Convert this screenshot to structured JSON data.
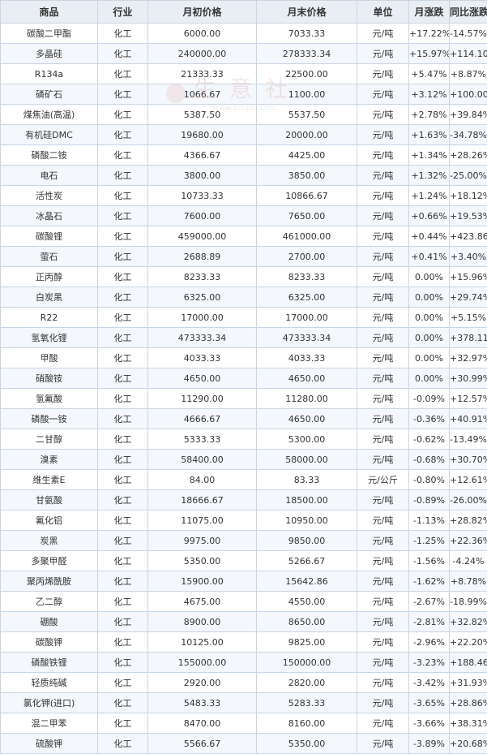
{
  "table": {
    "headers": [
      "商品",
      "行业",
      "月初价格",
      "月末价格",
      "单位",
      "月涨跌",
      "同比涨跌"
    ],
    "rows": [
      {
        "name": "碳酸二甲酯",
        "industry": "化工",
        "start": "6000.00",
        "end": "7033.33",
        "unit": "元/吨",
        "mchg": "+17.22%",
        "ychg": "-14.57%"
      },
      {
        "name": "多晶硅",
        "industry": "化工",
        "start": "240000.00",
        "end": "278333.34",
        "unit": "元/吨",
        "mchg": "+15.97%",
        "ychg": "+114.10%"
      },
      {
        "name": "R134a",
        "industry": "化工",
        "start": "21333.33",
        "end": "22500.00",
        "unit": "元/吨",
        "mchg": "+5.47%",
        "ychg": "+8.87%"
      },
      {
        "name": "磷矿石",
        "industry": "化工",
        "start": "1066.67",
        "end": "1100.00",
        "unit": "元/吨",
        "mchg": "+3.12%",
        "ychg": "+100.00%"
      },
      {
        "name": "煤焦油(高温)",
        "industry": "化工",
        "start": "5387.50",
        "end": "5537.50",
        "unit": "元/吨",
        "mchg": "+2.78%",
        "ychg": "+39.84%"
      },
      {
        "name": "有机硅DMC",
        "industry": "化工",
        "start": "19680.00",
        "end": "20000.00",
        "unit": "元/吨",
        "mchg": "+1.63%",
        "ychg": "-34.78%"
      },
      {
        "name": "磷酸二铵",
        "industry": "化工",
        "start": "4366.67",
        "end": "4425.00",
        "unit": "元/吨",
        "mchg": "+1.34%",
        "ychg": "+28.26%"
      },
      {
        "name": "电石",
        "industry": "化工",
        "start": "3800.00",
        "end": "3850.00",
        "unit": "元/吨",
        "mchg": "+1.32%",
        "ychg": "-25.00%"
      },
      {
        "name": "活性炭",
        "industry": "化工",
        "start": "10733.33",
        "end": "10866.67",
        "unit": "元/吨",
        "mchg": "+1.24%",
        "ychg": "+18.12%"
      },
      {
        "name": "冰晶石",
        "industry": "化工",
        "start": "7600.00",
        "end": "7650.00",
        "unit": "元/吨",
        "mchg": "+0.66%",
        "ychg": "+19.53%"
      },
      {
        "name": "碳酸锂",
        "industry": "化工",
        "start": "459000.00",
        "end": "461000.00",
        "unit": "元/吨",
        "mchg": "+0.44%",
        "ychg": "+423.86%"
      },
      {
        "name": "萤石",
        "industry": "化工",
        "start": "2688.89",
        "end": "2700.00",
        "unit": "元/吨",
        "mchg": "+0.41%",
        "ychg": "+3.40%"
      },
      {
        "name": "正丙醇",
        "industry": "化工",
        "start": "8233.33",
        "end": "8233.33",
        "unit": "元/吨",
        "mchg": "0.00%",
        "ychg": "+15.96%"
      },
      {
        "name": "白炭黑",
        "industry": "化工",
        "start": "6325.00",
        "end": "6325.00",
        "unit": "元/吨",
        "mchg": "0.00%",
        "ychg": "+29.74%"
      },
      {
        "name": "R22",
        "industry": "化工",
        "start": "17000.00",
        "end": "17000.00",
        "unit": "元/吨",
        "mchg": "0.00%",
        "ychg": "+5.15%"
      },
      {
        "name": "氢氧化锂",
        "industry": "化工",
        "start": "473333.34",
        "end": "473333.34",
        "unit": "元/吨",
        "mchg": "0.00%",
        "ychg": "+378.11%"
      },
      {
        "name": "甲酸",
        "industry": "化工",
        "start": "4033.33",
        "end": "4033.33",
        "unit": "元/吨",
        "mchg": "0.00%",
        "ychg": "+32.97%"
      },
      {
        "name": "硝酸铵",
        "industry": "化工",
        "start": "4650.00",
        "end": "4650.00",
        "unit": "元/吨",
        "mchg": "0.00%",
        "ychg": "+30.99%"
      },
      {
        "name": "氢氟酸",
        "industry": "化工",
        "start": "11290.00",
        "end": "11280.00",
        "unit": "元/吨",
        "mchg": "-0.09%",
        "ychg": "+12.57%"
      },
      {
        "name": "磷酸一铵",
        "industry": "化工",
        "start": "4666.67",
        "end": "4650.00",
        "unit": "元/吨",
        "mchg": "-0.36%",
        "ychg": "+40.91%"
      },
      {
        "name": "二甘醇",
        "industry": "化工",
        "start": "5333.33",
        "end": "5300.00",
        "unit": "元/吨",
        "mchg": "-0.62%",
        "ychg": "-13.49%"
      },
      {
        "name": "溴素",
        "industry": "化工",
        "start": "58400.00",
        "end": "58000.00",
        "unit": "元/吨",
        "mchg": "-0.68%",
        "ychg": "+30.70%"
      },
      {
        "name": "维生素E",
        "industry": "化工",
        "start": "84.00",
        "end": "83.33",
        "unit": "元/公斤",
        "mchg": "-0.80%",
        "ychg": "+12.61%"
      },
      {
        "name": "甘氨酸",
        "industry": "化工",
        "start": "18666.67",
        "end": "18500.00",
        "unit": "元/吨",
        "mchg": "-0.89%",
        "ychg": "-26.00%"
      },
      {
        "name": "氟化铝",
        "industry": "化工",
        "start": "11075.00",
        "end": "10950.00",
        "unit": "元/吨",
        "mchg": "-1.13%",
        "ychg": "+28.82%"
      },
      {
        "name": "炭黑",
        "industry": "化工",
        "start": "9975.00",
        "end": "9850.00",
        "unit": "元/吨",
        "mchg": "-1.25%",
        "ychg": "+22.36%"
      },
      {
        "name": "多聚甲醛",
        "industry": "化工",
        "start": "5350.00",
        "end": "5266.67",
        "unit": "元/吨",
        "mchg": "-1.56%",
        "ychg": "-4.24%"
      },
      {
        "name": "聚丙烯酰胺",
        "industry": "化工",
        "start": "15900.00",
        "end": "15642.86",
        "unit": "元/吨",
        "mchg": "-1.62%",
        "ychg": "+8.78%"
      },
      {
        "name": "乙二醇",
        "industry": "化工",
        "start": "4675.00",
        "end": "4550.00",
        "unit": "元/吨",
        "mchg": "-2.67%",
        "ychg": "-18.99%"
      },
      {
        "name": "硼酸",
        "industry": "化工",
        "start": "8900.00",
        "end": "8650.00",
        "unit": "元/吨",
        "mchg": "-2.81%",
        "ychg": "+32.82%"
      },
      {
        "name": "碳酸钾",
        "industry": "化工",
        "start": "10125.00",
        "end": "9825.00",
        "unit": "元/吨",
        "mchg": "-2.96%",
        "ychg": "+22.20%"
      },
      {
        "name": "磷酸铁锂",
        "industry": "化工",
        "start": "155000.00",
        "end": "150000.00",
        "unit": "元/吨",
        "mchg": "-3.23%",
        "ychg": "+188.46%"
      },
      {
        "name": "轻质纯碱",
        "industry": "化工",
        "start": "2920.00",
        "end": "2820.00",
        "unit": "元/吨",
        "mchg": "-3.42%",
        "ychg": "+31.93%"
      },
      {
        "name": "氯化钾(进口)",
        "industry": "化工",
        "start": "5483.33",
        "end": "5283.33",
        "unit": "元/吨",
        "mchg": "-3.65%",
        "ychg": "+28.86%"
      },
      {
        "name": "混二甲苯",
        "industry": "化工",
        "start": "8470.00",
        "end": "8160.00",
        "unit": "元/吨",
        "mchg": "-3.66%",
        "ychg": "+38.31%"
      },
      {
        "name": "硫酸钾",
        "industry": "化工",
        "start": "5566.67",
        "end": "5350.00",
        "unit": "元/吨",
        "mchg": "-3.89%",
        "ychg": "+20.68%"
      }
    ]
  },
  "watermark": {
    "text": "生意社",
    "url": "www.100ppi.com"
  },
  "colors": {
    "up": "#e8202a",
    "down": "#1f9a1f",
    "link": "#1e4fa0",
    "header_bg": "#e9eef4",
    "border": "#c9d6e3"
  }
}
